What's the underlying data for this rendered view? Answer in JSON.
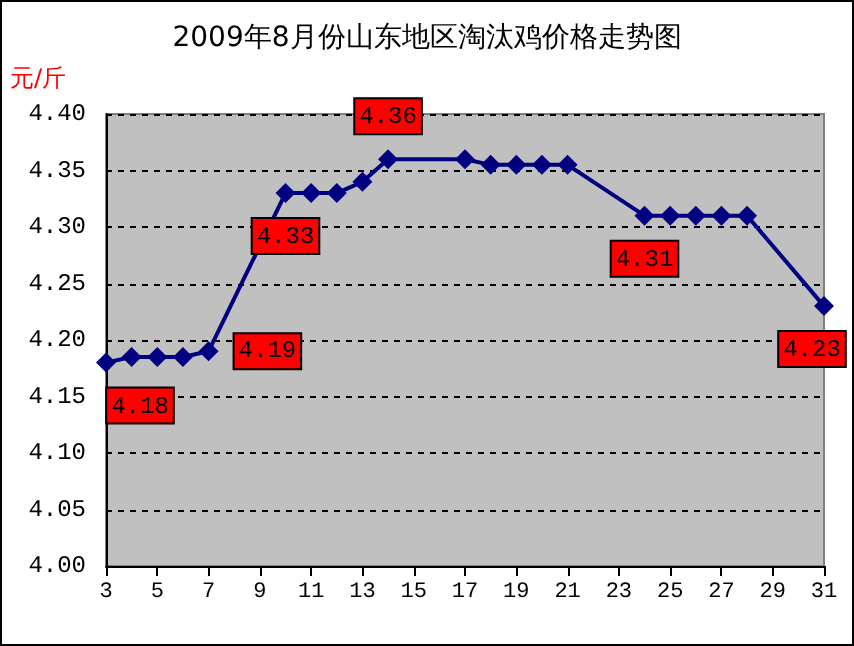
{
  "chart_data": {
    "type": "line",
    "title": "2009年8月份山东地区淘汰鸡价格走势图",
    "ylabel": "元/斤",
    "x": [
      3,
      4,
      5,
      6,
      7,
      10,
      11,
      12,
      13,
      14,
      17,
      18,
      19,
      20,
      21,
      24,
      25,
      26,
      27,
      28,
      31
    ],
    "series": [
      {
        "color": "#000080",
        "values": [
          4.18,
          4.185,
          4.185,
          4.185,
          4.19,
          4.33,
          4.33,
          4.33,
          4.34,
          4.36,
          4.36,
          4.355,
          4.355,
          4.355,
          4.355,
          4.31,
          4.31,
          4.31,
          4.31,
          4.31,
          4.23
        ],
        "value_labels": [
          "4.18",
          null,
          null,
          null,
          "4.19",
          "4.33",
          null,
          null,
          null,
          "4.36",
          null,
          null,
          null,
          null,
          null,
          "4.31",
          null,
          null,
          null,
          null,
          "4.23"
        ]
      }
    ],
    "xlim": [
      3,
      31
    ],
    "xticks": [
      3,
      5,
      7,
      9,
      11,
      13,
      15,
      17,
      19,
      21,
      23,
      25,
      27,
      29,
      31
    ],
    "ylim": [
      4.0,
      4.4
    ],
    "yticks": [
      {
        "value": 4.0,
        "label": "4.00"
      },
      4.05,
      {
        "value": 4.1,
        "label": "4.10"
      },
      4.15,
      {
        "value": 4.2,
        "label": "4.20"
      },
      4.25,
      {
        "value": 4.3,
        "label": "4.30"
      },
      4.35,
      {
        "value": 4.4,
        "label": "4.40"
      }
    ],
    "grid": "y",
    "marker": "diamond",
    "line_style": "solid"
  }
}
